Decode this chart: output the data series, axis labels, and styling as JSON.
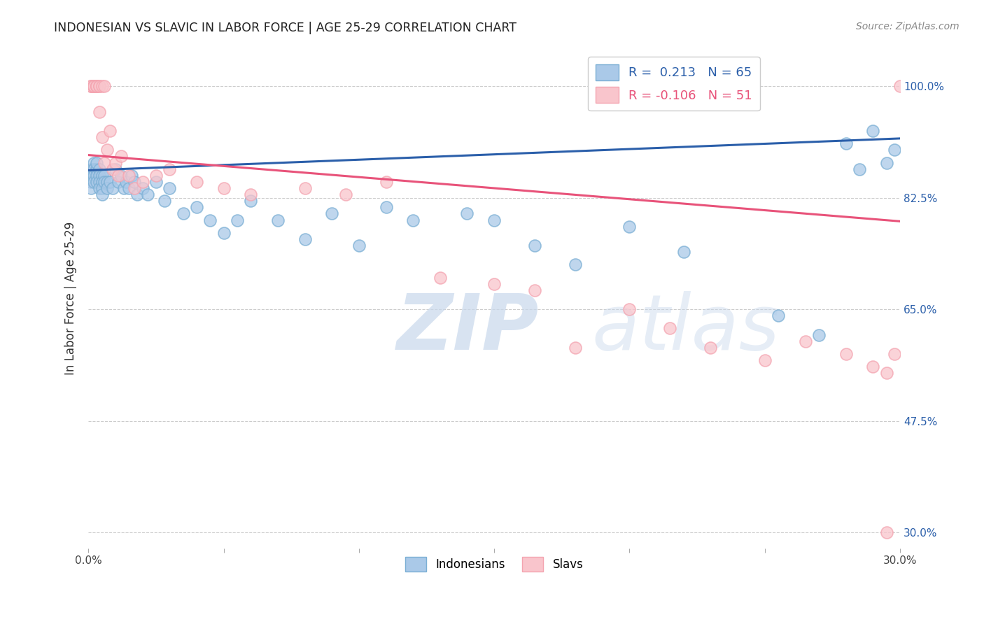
{
  "title": "INDONESIAN VS SLAVIC IN LABOR FORCE | AGE 25-29 CORRELATION CHART",
  "source": "Source: ZipAtlas.com",
  "ylabel": "In Labor Force | Age 25-29",
  "xlim": [
    0.0,
    0.3
  ],
  "ylim": [
    0.275,
    1.06
  ],
  "yticks": [
    0.3,
    0.475,
    0.65,
    0.825,
    1.0
  ],
  "ytick_labels": [
    "30.0%",
    "47.5%",
    "65.0%",
    "82.5%",
    "100.0%"
  ],
  "xticks": [
    0.0,
    0.05,
    0.1,
    0.15,
    0.2,
    0.25,
    0.3
  ],
  "xtick_labels": [
    "0.0%",
    "",
    "",
    "",
    "",
    "",
    "30.0%"
  ],
  "legend_r_blue": " 0.213",
  "legend_n_blue": "65",
  "legend_r_pink": "-0.106",
  "legend_n_pink": "51",
  "blue_color": "#7bafd4",
  "pink_color": "#f4a4b0",
  "blue_fill": "#aac9e8",
  "pink_fill": "#f9c5cc",
  "line_blue_color": "#2b5faa",
  "line_pink_color": "#e8537a",
  "right_ytick_color": "#2b5faa",
  "blue_line_y0": 0.868,
  "blue_line_y1": 0.918,
  "pink_line_y0": 0.892,
  "pink_line_y1": 0.788,
  "indonesian_x": [
    0.001,
    0.001,
    0.001,
    0.001,
    0.002,
    0.002,
    0.002,
    0.002,
    0.003,
    0.003,
    0.003,
    0.003,
    0.004,
    0.004,
    0.004,
    0.004,
    0.005,
    0.005,
    0.005,
    0.005,
    0.006,
    0.006,
    0.007,
    0.007,
    0.008,
    0.009,
    0.01,
    0.011,
    0.012,
    0.013,
    0.014,
    0.015,
    0.016,
    0.017,
    0.018,
    0.02,
    0.022,
    0.025,
    0.028,
    0.03,
    0.035,
    0.04,
    0.045,
    0.05,
    0.055,
    0.06,
    0.07,
    0.08,
    0.09,
    0.1,
    0.11,
    0.12,
    0.14,
    0.15,
    0.165,
    0.18,
    0.2,
    0.22,
    0.255,
    0.27,
    0.28,
    0.285,
    0.29,
    0.295,
    0.298
  ],
  "indonesian_y": [
    0.87,
    0.86,
    0.85,
    0.84,
    0.88,
    0.87,
    0.86,
    0.85,
    0.87,
    0.86,
    0.85,
    0.88,
    0.87,
    0.86,
    0.85,
    0.84,
    0.86,
    0.85,
    0.84,
    0.83,
    0.86,
    0.85,
    0.85,
    0.84,
    0.85,
    0.84,
    0.87,
    0.85,
    0.86,
    0.84,
    0.85,
    0.84,
    0.86,
    0.85,
    0.83,
    0.84,
    0.83,
    0.85,
    0.82,
    0.84,
    0.8,
    0.81,
    0.79,
    0.77,
    0.79,
    0.82,
    0.79,
    0.76,
    0.8,
    0.75,
    0.81,
    0.79,
    0.8,
    0.79,
    0.75,
    0.72,
    0.78,
    0.74,
    0.64,
    0.61,
    0.91,
    0.87,
    0.93,
    0.88,
    0.9
  ],
  "slavic_x": [
    0.001,
    0.001,
    0.001,
    0.002,
    0.002,
    0.002,
    0.002,
    0.002,
    0.003,
    0.003,
    0.003,
    0.003,
    0.004,
    0.004,
    0.004,
    0.005,
    0.005,
    0.006,
    0.006,
    0.007,
    0.008,
    0.009,
    0.01,
    0.011,
    0.012,
    0.015,
    0.017,
    0.02,
    0.025,
    0.03,
    0.04,
    0.05,
    0.06,
    0.08,
    0.095,
    0.11,
    0.13,
    0.15,
    0.165,
    0.18,
    0.2,
    0.215,
    0.23,
    0.25,
    0.265,
    0.28,
    0.29,
    0.295,
    0.298,
    0.3,
    0.295
  ],
  "slavic_y": [
    1.0,
    1.0,
    1.0,
    1.0,
    1.0,
    1.0,
    1.0,
    1.0,
    1.0,
    1.0,
    1.0,
    1.0,
    1.0,
    1.0,
    0.96,
    1.0,
    0.92,
    1.0,
    0.88,
    0.9,
    0.93,
    0.87,
    0.88,
    0.86,
    0.89,
    0.86,
    0.84,
    0.85,
    0.86,
    0.87,
    0.85,
    0.84,
    0.83,
    0.84,
    0.83,
    0.85,
    0.7,
    0.69,
    0.68,
    0.59,
    0.65,
    0.62,
    0.59,
    0.57,
    0.6,
    0.58,
    0.56,
    0.55,
    0.58,
    1.0,
    0.3
  ]
}
